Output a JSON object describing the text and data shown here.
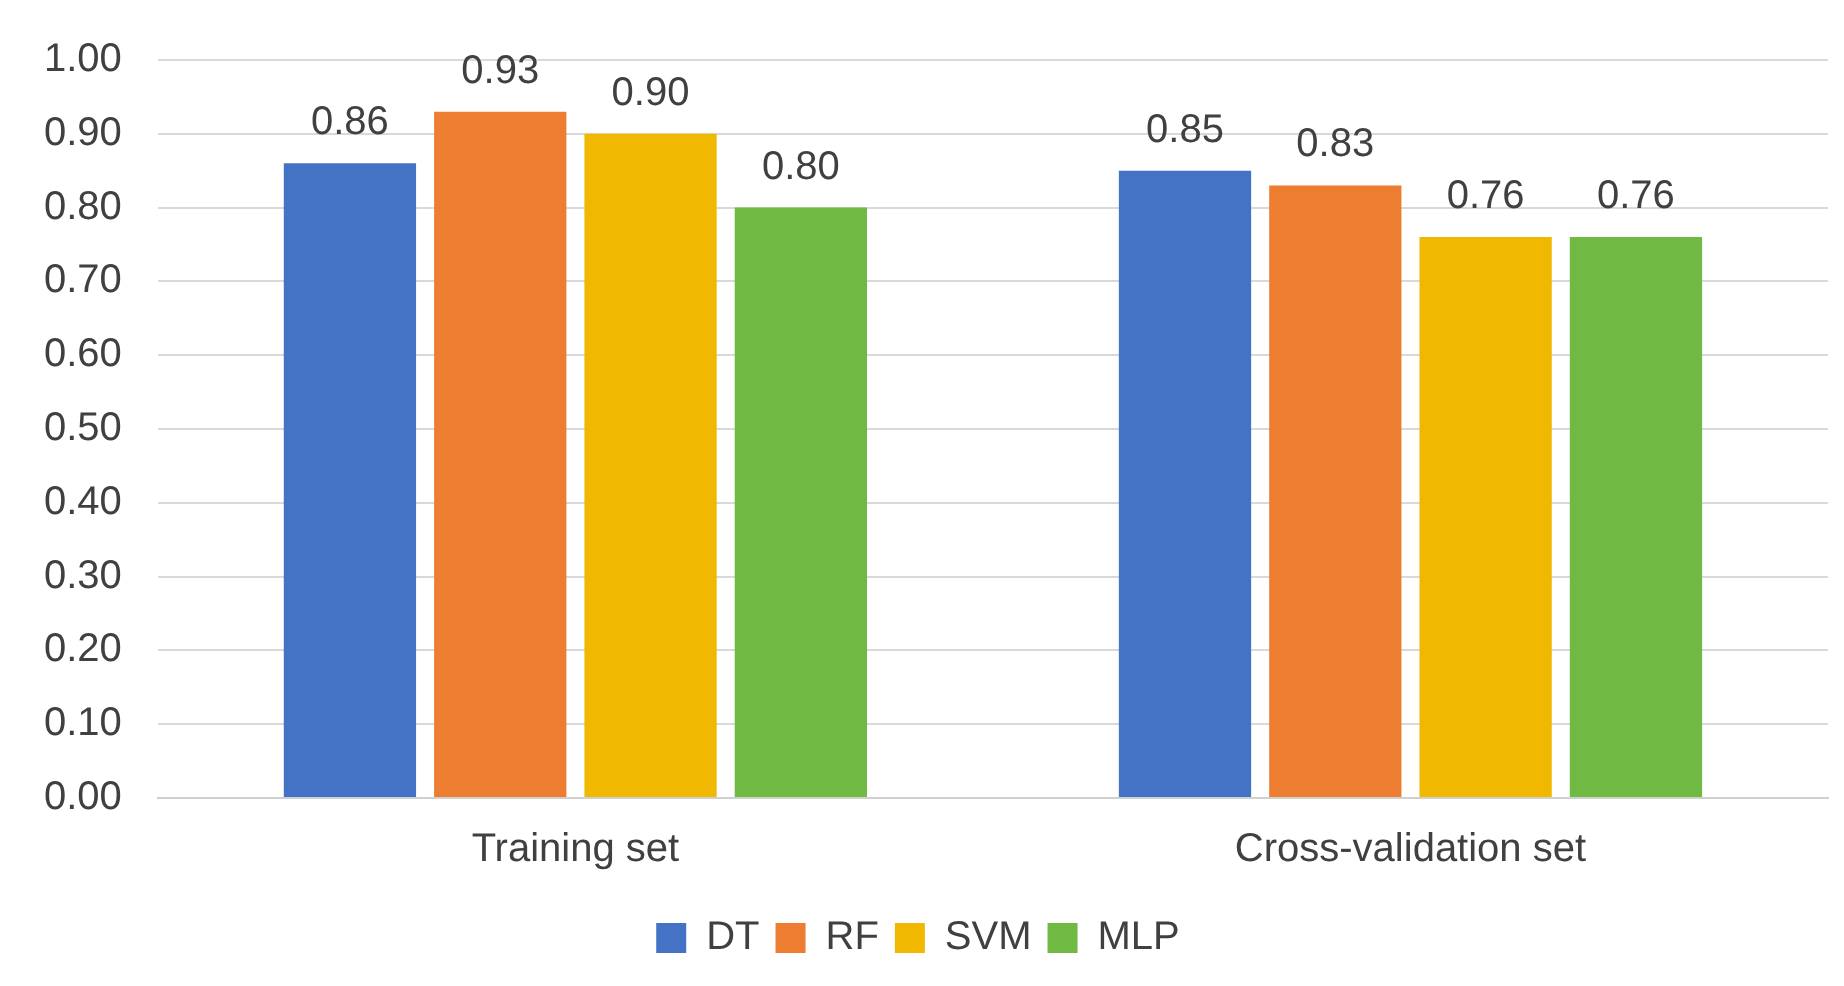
{
  "chart_data": {
    "type": "bar",
    "categories": [
      "Training set",
      "Cross-validation set"
    ],
    "series": [
      {
        "name": "DT",
        "color": "#4472c4",
        "values": [
          0.86,
          0.85
        ],
        "value_labels": [
          "0.86",
          "0.85"
        ]
      },
      {
        "name": "RF",
        "color": "#ed7d31",
        "values": [
          0.93,
          0.83
        ],
        "value_labels": [
          "0.93",
          "0.83"
        ]
      },
      {
        "name": "SVM",
        "color": "#f0b800",
        "values": [
          0.9,
          0.76
        ],
        "value_labels": [
          "0.90",
          "0.76"
        ]
      },
      {
        "name": "MLP",
        "color": "#70b943",
        "values": [
          0.8,
          0.76
        ],
        "value_labels": [
          "0.80",
          "0.76"
        ]
      }
    ],
    "ylim": [
      0,
      1
    ],
    "yticks": [
      {
        "value": 0,
        "label": "0.00"
      },
      {
        "value": 0.1,
        "label": "0.10"
      },
      {
        "value": 0.2,
        "label": "0.20"
      },
      {
        "value": 0.3,
        "label": "0.30"
      },
      {
        "value": 0.4,
        "label": "0.40"
      },
      {
        "value": 0.5,
        "label": "0.50"
      },
      {
        "value": 0.6,
        "label": "0.60"
      },
      {
        "value": 0.7,
        "label": "0.70"
      },
      {
        "value": 0.8,
        "label": "0.80"
      },
      {
        "value": 0.9,
        "label": "0.90"
      },
      {
        "value": 1,
        "label": "1.00"
      }
    ],
    "grid": "y",
    "legend": "bottom"
  }
}
